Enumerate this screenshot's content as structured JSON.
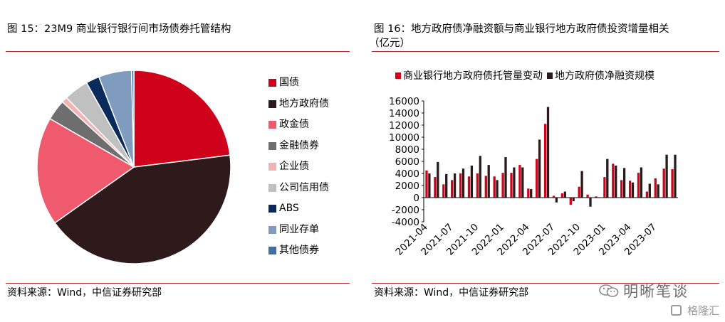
{
  "left": {
    "title": "图 15：23M9 商业银行银行间市场债券托管结构",
    "source": "资料来源：Wind，中信证券研究部"
  },
  "right": {
    "title_line1": "图  16：地方政府债净融资额与商业银行地方政府债投资增量相关",
    "title_line2": "（亿元）",
    "source": "资料来源：Wind，中信证券研究部"
  },
  "watermark": {
    "brand": "明晰笔谈",
    "site": "格隆汇"
  },
  "colors": {
    "rule": "#b3262e",
    "red": "#d0021b",
    "black": "#2a1a1a"
  },
  "chart_data": [
    {
      "type": "pie",
      "title": "",
      "start_angle": "12 o'clock, clockwise",
      "slices": [
        {
          "label": "国债",
          "value": 23.5,
          "color": "#d0021b"
        },
        {
          "label": "地方政府债",
          "value": 43.0,
          "color": "#2e1a1a"
        },
        {
          "label": "政金债",
          "value": 18.5,
          "color": "#f05a6e"
        },
        {
          "label": "金融债券",
          "value": 3.5,
          "color": "#6e6e6e"
        },
        {
          "label": "企业债",
          "value": 1.0,
          "color": "#f4b3b3"
        },
        {
          "label": "公司信用债",
          "value": 4.2,
          "color": "#c0c0c0"
        },
        {
          "label": "ABS",
          "value": 2.3,
          "color": "#0b2a5c"
        },
        {
          "label": "同业存单",
          "value": 5.6,
          "color": "#7f9cbf"
        },
        {
          "label": "其他债券",
          "value": 0.4,
          "color": "#3e6fa8"
        }
      ],
      "legend_position": "right"
    },
    {
      "type": "bar",
      "title": "",
      "legend_position": "top",
      "ylim": [
        -4000,
        16000
      ],
      "yticks": [
        "16000",
        "14000",
        "12000",
        "10000",
        "8000",
        "6000",
        "4000",
        "2000",
        "0",
        "-2000",
        "-4000"
      ],
      "tick_labels": [
        "2021-04",
        "2021-07",
        "2021-10",
        "2022-01",
        "2022-04",
        "2022-07",
        "2022-10",
        "2023-01",
        "2023-04",
        "2023-07"
      ],
      "categories": [
        "2021-04",
        "2021-05",
        "2021-06",
        "2021-07",
        "2021-08",
        "2021-09",
        "2021-10",
        "2021-11",
        "2021-12",
        "2022-01",
        "2022-02",
        "2022-03",
        "2022-04",
        "2022-05",
        "2022-06",
        "2022-07",
        "2022-08",
        "2022-09",
        "2022-10",
        "2022-11",
        "2022-12",
        "2023-01",
        "2023-02",
        "2023-03",
        "2023-04",
        "2023-05",
        "2023-06",
        "2023-07",
        "2023-08",
        "2023-09"
      ],
      "series": [
        {
          "name": "商业银行地方政府债托管量变动",
          "color": "#d0021b",
          "values": [
            4500,
            3400,
            2200,
            2900,
            4000,
            3500,
            4000,
            3600,
            3500,
            4100,
            4100,
            5400,
            1500,
            6400,
            12200,
            300,
            700,
            -1200,
            1800,
            500,
            200,
            3400,
            5600,
            2900,
            2800,
            4100,
            1000,
            3200,
            4800,
            4700
          ]
        },
        {
          "name": "地方政府债净融资规模",
          "color": "#2a1a1a",
          "values": [
            4000,
            5900,
            3900,
            4000,
            4800,
            5300,
            6900,
            5400,
            2900,
            6700,
            5000,
            5000,
            1400,
            9600,
            15000,
            -800,
            1000,
            -600,
            4400,
            -1500,
            0,
            6400,
            5300,
            4900,
            2500,
            5000,
            2300,
            2200,
            7100,
            7100
          ]
        }
      ]
    }
  ]
}
